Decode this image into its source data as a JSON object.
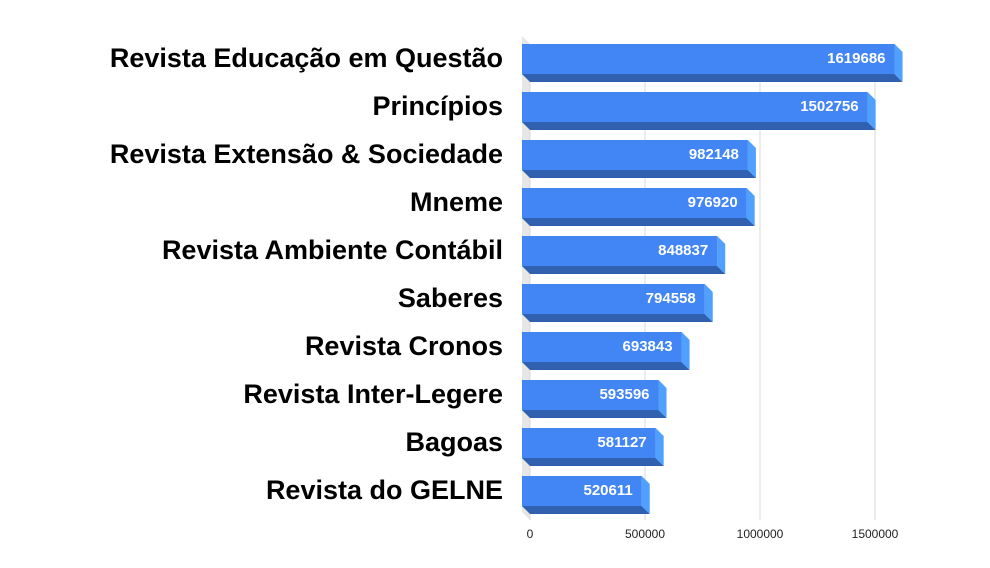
{
  "chart_data": {
    "type": "bar3d",
    "categories": [
      "Revista Educação em Questão",
      "Princípios",
      "Revista Extensão & Sociedade",
      "Mneme",
      "Revista Ambiente Contábil",
      "Saberes",
      "Revista Cronos",
      "Revista Inter-Legere",
      "Bagoas",
      "Revista do GELNE"
    ],
    "values": [
      1619686,
      1502756,
      982148,
      976920,
      848837,
      794558,
      693843,
      593596,
      581127,
      520611
    ],
    "color": "#4285f4",
    "xlim": [
      0,
      1500000
    ],
    "xticks": [
      0,
      500000,
      1000000,
      1500000
    ],
    "grid": true
  }
}
